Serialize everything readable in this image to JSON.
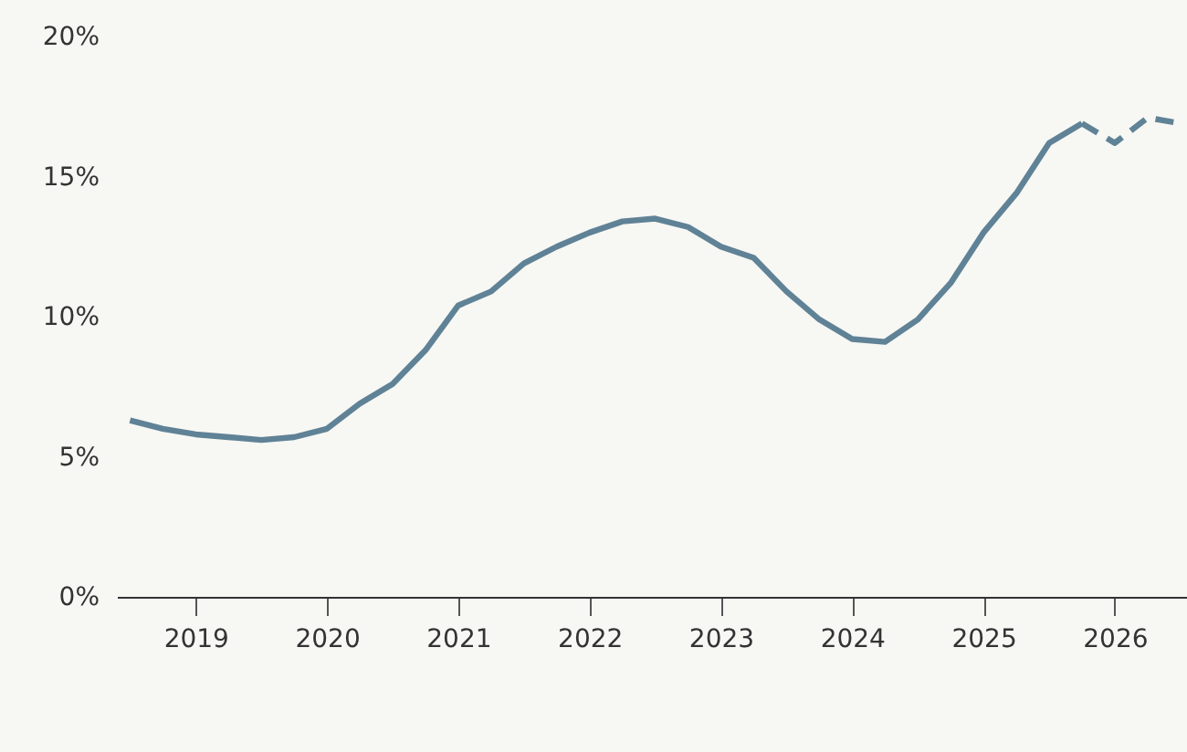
{
  "chart_data": {
    "type": "line",
    "xlim": [
      2018.4,
      2026.55
    ],
    "xticks": [
      2019,
      2020,
      2021,
      2022,
      2023,
      2024,
      2025,
      2026
    ],
    "ylim": [
      0,
      20
    ],
    "yticks": [
      {
        "value": 0,
        "label": "0%"
      },
      {
        "value": 5,
        "label": "5%"
      },
      {
        "value": 10,
        "label": "10%"
      },
      {
        "value": 15,
        "label": "15%"
      },
      {
        "value": 20,
        "label": "20%"
      }
    ],
    "grid": false,
    "marker": "none",
    "series": [
      {
        "color": "#5f8296",
        "line_style": "solid",
        "x": [
          2018.5,
          2018.75,
          2019.0,
          2019.25,
          2019.5,
          2019.75,
          2020.0,
          2020.25,
          2020.5,
          2020.75,
          2021.0,
          2021.25,
          2021.5,
          2021.75,
          2022.0,
          2022.25,
          2022.5,
          2022.75,
          2023.0,
          2023.25,
          2023.5,
          2023.75,
          2024.0,
          2024.25,
          2024.5,
          2024.75,
          2025.0,
          2025.25,
          2025.5,
          2025.75
        ],
        "values": [
          6.3,
          6.0,
          5.8,
          5.7,
          5.6,
          5.7,
          6.0,
          6.9,
          7.6,
          8.8,
          10.4,
          10.9,
          11.9,
          12.5,
          13.0,
          13.4,
          13.5,
          13.2,
          12.5,
          12.1,
          10.9,
          9.9,
          9.2,
          9.1,
          9.9,
          11.2,
          13.0,
          14.4,
          16.2,
          16.9
        ]
      },
      {
        "color": "#5f8296",
        "line_style": "dashed",
        "x": [
          2025.75,
          2026.0,
          2026.25,
          2026.5
        ],
        "values": [
          16.9,
          16.2,
          17.1,
          16.9
        ]
      }
    ]
  }
}
